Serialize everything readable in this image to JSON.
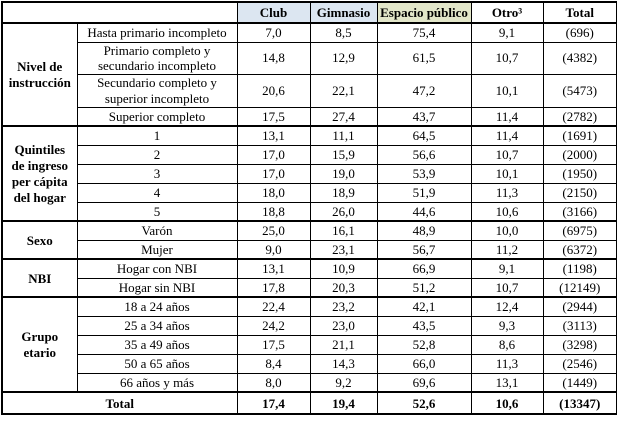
{
  "table": {
    "columns": [
      "Club",
      "Gimnasio",
      "Espacio público",
      "Otro³",
      "Total"
    ],
    "column_backgrounds": [
      "#dce6f1",
      "#dce6f1",
      "#e2e6c9",
      "#ffffff",
      "#ffffff"
    ],
    "border_color": "#000000",
    "groups": [
      {
        "label": "Nivel de instrucción",
        "rows": [
          {
            "label": "Hasta primario incompleto",
            "values": [
              "7,0",
              "8,5",
              "75,4",
              "9,1",
              "(696)"
            ]
          },
          {
            "label": "Primario completo y secundario incompleto",
            "values": [
              "14,8",
              "12,9",
              "61,5",
              "10,7",
              "(4382)"
            ]
          },
          {
            "label": "Secundario completo y superior incompleto",
            "values": [
              "20,6",
              "22,1",
              "47,2",
              "10,1",
              "(5473)"
            ]
          },
          {
            "label": "Superior completo",
            "values": [
              "17,5",
              "27,4",
              "43,7",
              "11,4",
              "(2782)"
            ]
          }
        ]
      },
      {
        "label": "Quintiles de ingreso per cápita del hogar",
        "rows": [
          {
            "label": "1",
            "values": [
              "13,1",
              "11,1",
              "64,5",
              "11,4",
              "(1691)"
            ]
          },
          {
            "label": "2",
            "values": [
              "17,0",
              "15,9",
              "56,6",
              "10,7",
              "(2000)"
            ]
          },
          {
            "label": "3",
            "values": [
              "17,0",
              "19,0",
              "53,9",
              "10,1",
              "(1950)"
            ]
          },
          {
            "label": "4",
            "values": [
              "18,0",
              "18,9",
              "51,9",
              "11,3",
              "(2150)"
            ]
          },
          {
            "label": "5",
            "values": [
              "18,8",
              "26,0",
              "44,6",
              "10,6",
              "(3166)"
            ]
          }
        ]
      },
      {
        "label": "Sexo",
        "rows": [
          {
            "label": "Varón",
            "values": [
              "25,0",
              "16,1",
              "48,9",
              "10,0",
              "(6975)"
            ]
          },
          {
            "label": "Mujer",
            "values": [
              "9,0",
              "23,1",
              "56,7",
              "11,2",
              "(6372)"
            ]
          }
        ]
      },
      {
        "label": "NBI",
        "rows": [
          {
            "label": "Hogar con NBI",
            "values": [
              "13,1",
              "10,9",
              "66,9",
              "9,1",
              "(1198)"
            ]
          },
          {
            "label": "Hogar sin NBI",
            "values": [
              "17,8",
              "20,3",
              "51,2",
              "10,7",
              "(12149)"
            ]
          }
        ]
      },
      {
        "label": "Grupo etario",
        "rows": [
          {
            "label": "18 a 24 años",
            "values": [
              "22,4",
              "23,2",
              "42,1",
              "12,4",
              "(2944)"
            ]
          },
          {
            "label": "25 a 34 años",
            "values": [
              "24,2",
              "23,0",
              "43,5",
              "9,3",
              "(3113)"
            ]
          },
          {
            "label": "35 a 49 años",
            "values": [
              "17,5",
              "21,1",
              "52,8",
              "8,6",
              "(3298)"
            ]
          },
          {
            "label": "50 a 65 años",
            "values": [
              "8,4",
              "14,3",
              "66,0",
              "11,3",
              "(2546)"
            ]
          },
          {
            "label": "66 años y más",
            "values": [
              "8,0",
              "9,2",
              "69,6",
              "13,1",
              "(1449)"
            ]
          }
        ]
      }
    ],
    "total_row": {
      "label": "Total",
      "values": [
        "17,4",
        "19,4",
        "52,6",
        "10,6",
        "(13347)"
      ]
    }
  }
}
